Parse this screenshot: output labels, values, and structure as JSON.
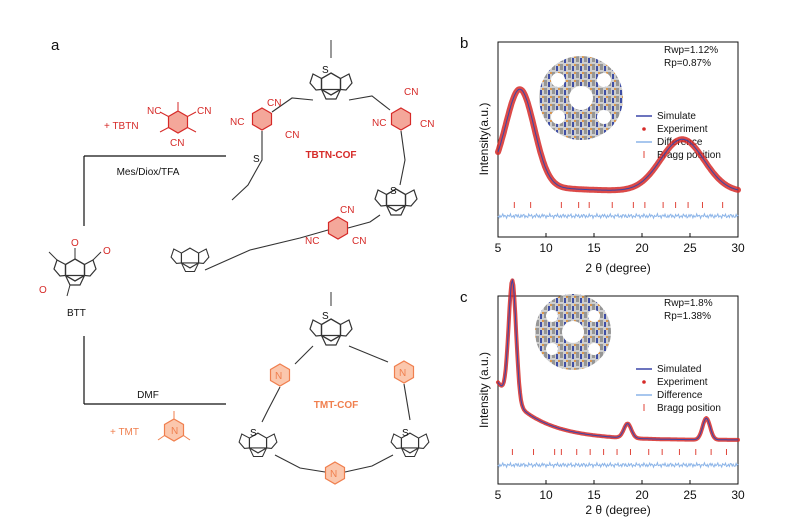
{
  "panel_labels": {
    "a": "a",
    "b": "b",
    "c": "c"
  },
  "scheme": {
    "core_label": "BTT",
    "core_substituent": "O",
    "core_heteroatom": "S",
    "upper_reagent": "+ TBTN",
    "upper_conditions": "Mes/Diox/TFA",
    "upper_product": "TBTN-COF",
    "lower_reagent": "+ TMT",
    "lower_conditions": "DMF",
    "lower_product": "TMT-COF",
    "nitrile": "CN",
    "nitrile_reversed": "NC",
    "triazine_n": "N",
    "colors": {
      "tbtn": "#d62a28",
      "tmt": "#f07f4e",
      "bond": "#333333",
      "sulfur": "#3a4c9a"
    }
  },
  "chart_data": [
    {
      "type": "line",
      "title": "",
      "xlabel": "2 θ (degree)",
      "ylabel": "Intensity(a.u.)",
      "xlim": [
        5,
        30
      ],
      "xticks": [
        "5",
        "10",
        "15",
        "20",
        "25",
        "30"
      ],
      "fit_stats": [
        "Rwp=1.12%",
        "Rp=0.87%"
      ],
      "legend": [
        "Simulate",
        "Experiment",
        "Difference",
        "Bragg position"
      ],
      "experiment_peaks": [
        {
          "x": 7.3,
          "rel": 1.0
        },
        {
          "x": 24.2,
          "rel": 0.55
        }
      ],
      "bragg_positions": [
        6.7,
        8.4,
        11.6,
        13.4,
        14.5,
        16.9,
        19.1,
        20.3,
        22.2,
        23.5,
        24.8,
        26.3,
        28.4
      ],
      "series_colors": {
        "simulate": "#3a45a8",
        "experiment": "#d62a28",
        "difference": "#8bb4e8",
        "bragg": "#e0453a"
      }
    },
    {
      "type": "line",
      "title": "",
      "xlabel": "2 θ (degree)",
      "ylabel": "Intensity (a.u.)",
      "xlim": [
        5,
        30
      ],
      "xticks": [
        "5",
        "10",
        "15",
        "20",
        "25",
        "30"
      ],
      "fit_stats": [
        "Rwp=1.8%",
        "Rp=1.38%"
      ],
      "legend": [
        "Simulated",
        "Experiment",
        "Difference",
        "Bragg position"
      ],
      "experiment_peaks": [
        {
          "x": 6.5,
          "rel": 1.0
        },
        {
          "x": 18.5,
          "rel": 0.12
        },
        {
          "x": 26.7,
          "rel": 0.18
        }
      ],
      "bragg_positions": [
        6.5,
        8.7,
        10.9,
        11.6,
        13.2,
        14.6,
        16.0,
        17.4,
        18.8,
        20.7,
        22.1,
        23.9,
        25.6,
        27.2,
        28.8
      ],
      "series_colors": {
        "simulate": "#3a45a8",
        "experiment": "#d62a28",
        "difference": "#8bb4e8",
        "bragg": "#e0453a"
      }
    }
  ]
}
